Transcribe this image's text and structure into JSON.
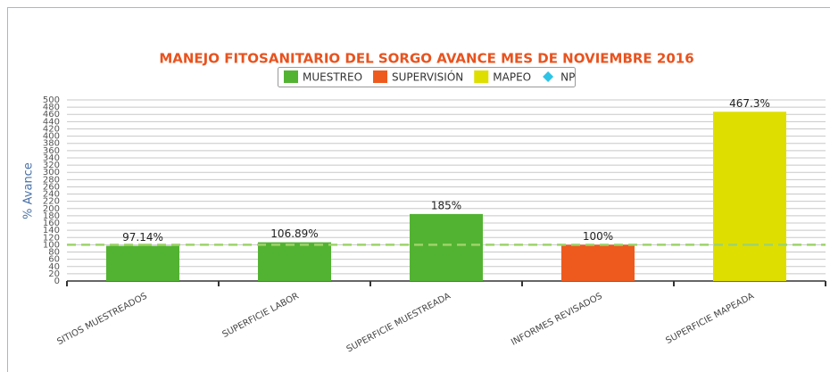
{
  "chart_data": {
    "type": "bar",
    "title": "MANEJO FITOSANITARIO DEL SORGO AVANCE MES DE NOVIEMBRE 2016",
    "y_label": "% Avance",
    "categories": [
      "SITIOS MUESTREADOS",
      "SUPERFICIE LABOR",
      "SUPERFICIE MUESTREADA",
      "INFORMES REVISADOS",
      "SUPERFICIE MAPEADA"
    ],
    "series": [
      {
        "name": "MUESTREO",
        "color": "#52b332",
        "values": [
          97.14,
          106.89,
          185,
          null,
          null
        ],
        "value_labels": [
          "97.14%",
          "106.89%",
          "185%",
          null,
          null
        ]
      },
      {
        "name": "SUPERVISIÓN",
        "color": "#ee5a1e",
        "values": [
          null,
          null,
          null,
          100,
          null
        ],
        "value_labels": [
          null,
          null,
          null,
          "100%",
          null
        ]
      },
      {
        "name": "MAPEO",
        "color": "#dede00",
        "values": [
          null,
          null,
          null,
          null,
          467.3
        ],
        "value_labels": [
          null,
          null,
          null,
          null,
          "467.3%"
        ]
      },
      {
        "name": "NP",
        "color": "#2ec4e6",
        "type": "line",
        "values": [
          100,
          100,
          100,
          100,
          100
        ]
      }
    ],
    "ylim": [
      0,
      500
    ],
    "yticks": [
      0,
      20,
      40,
      60,
      80,
      100,
      120,
      140,
      160,
      180,
      200,
      220,
      240,
      260,
      280,
      300,
      320,
      340,
      360,
      380,
      400,
      420,
      440,
      460,
      480,
      500
    ],
    "grid": true,
    "legend": "top"
  }
}
